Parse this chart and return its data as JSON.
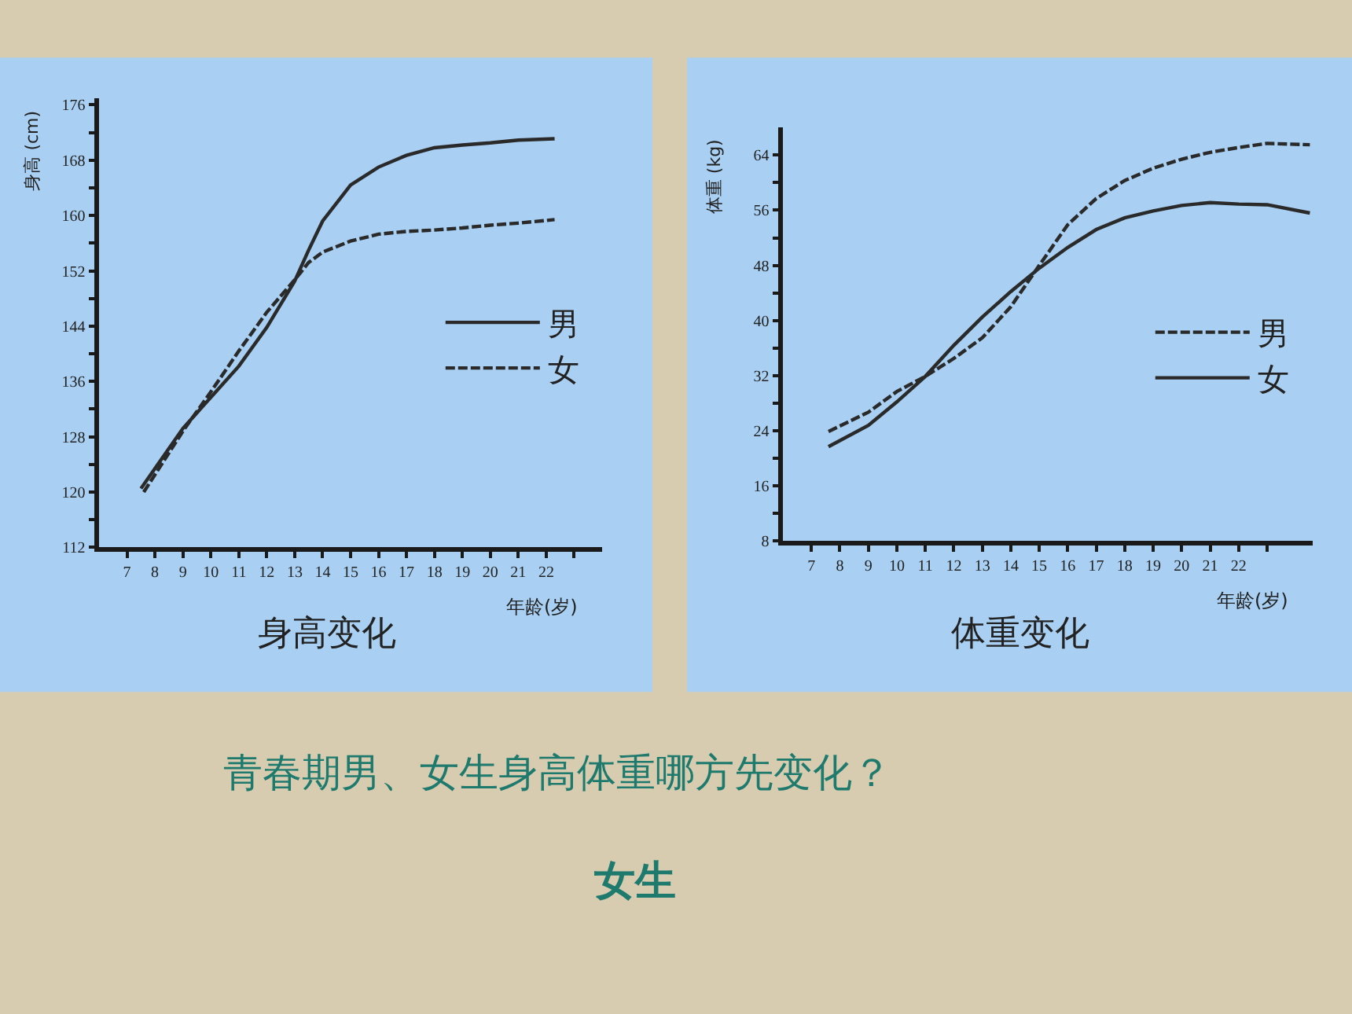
{
  "chart_data": [
    {
      "type": "line",
      "title": "身高变化",
      "xlabel": "年龄(岁)",
      "ylabel": "身高 (cm)",
      "xlim": [
        6,
        24
      ],
      "ylim": [
        112,
        177
      ],
      "xticks": [
        7,
        8,
        9,
        10,
        11,
        12,
        13,
        14,
        15,
        16,
        17,
        18,
        19,
        20,
        21,
        22,
        {
          "value": 23,
          "label": null
        }
      ],
      "yticks": [
        112,
        {
          "value": 116,
          "label": null
        },
        120,
        {
          "value": 124,
          "label": null
        },
        128,
        {
          "value": 132,
          "label": null
        },
        136,
        {
          "value": 140,
          "label": null
        },
        144,
        {
          "value": 148,
          "label": null
        },
        152,
        {
          "value": 156,
          "label": null
        },
        160,
        {
          "value": 164,
          "label": null
        },
        168,
        {
          "value": 172,
          "label": null
        },
        176
      ],
      "grid": false,
      "legend": "right",
      "marker": "none",
      "series": [
        {
          "name": "男",
          "color": "#2a2a2a",
          "line_style": "solid",
          "x": [
            7.5,
            9,
            10,
            11,
            12,
            13,
            13.5,
            14,
            15,
            16,
            17,
            18,
            19,
            20,
            21,
            22.3
          ],
          "values": [
            120.5,
            129.2,
            133.7,
            138.2,
            143.8,
            150.5,
            155,
            159.2,
            164.4,
            167,
            168.7,
            169.8,
            170.2,
            170.5,
            170.9,
            171.1
          ]
        },
        {
          "name": "女",
          "color": "#2a2a2a",
          "line_style": "dashed",
          "x": [
            7.6,
            9,
            10,
            11,
            12,
            13,
            13.5,
            14,
            15,
            16,
            17,
            18,
            19,
            20,
            21,
            22.3
          ],
          "values": [
            120,
            128.8,
            134.5,
            140.4,
            146,
            150.7,
            153.2,
            154.7,
            156.3,
            157.3,
            157.7,
            157.9,
            158.2,
            158.6,
            158.9,
            159.4
          ]
        }
      ]
    },
    {
      "type": "line",
      "title": "体重变化",
      "xlabel": "年龄(岁)",
      "ylabel": "体重 (kg)",
      "xlim": [
        6,
        24.6
      ],
      "ylim": [
        8,
        68
      ],
      "xticks": [
        7,
        8,
        9,
        10,
        11,
        12,
        13,
        14,
        15,
        16,
        17,
        18,
        19,
        20,
        21,
        22,
        {
          "value": 23,
          "label": null
        }
      ],
      "yticks": [
        8,
        {
          "value": 12,
          "label": null
        },
        16,
        {
          "value": 20,
          "label": null
        },
        24,
        {
          "value": 28,
          "label": null
        },
        32,
        {
          "value": 36,
          "label": null
        },
        40,
        {
          "value": 44,
          "label": null
        },
        48,
        {
          "value": 52,
          "label": null
        },
        56,
        {
          "value": 60,
          "label": null
        },
        64
      ],
      "grid": false,
      "legend": "right",
      "marker": "none",
      "series": [
        {
          "name": "男",
          "color": "#2a2a2a",
          "line_style": "dashed",
          "x": [
            7.6,
            9,
            10,
            11,
            12,
            13,
            14,
            15,
            16,
            17,
            18,
            19,
            20,
            21,
            22,
            23,
            24.5
          ],
          "values": [
            23.9,
            26.7,
            29.7,
            31.9,
            34.5,
            37.5,
            42,
            48,
            53.9,
            57.7,
            60.3,
            62.1,
            63.4,
            64.4,
            65.1,
            65.7,
            65.5
          ]
        },
        {
          "name": "女",
          "color": "#2a2a2a",
          "line_style": "solid",
          "x": [
            7.6,
            9,
            10,
            11,
            12,
            13,
            14,
            15,
            16,
            17,
            18,
            19,
            20,
            21,
            22,
            23,
            24.5
          ],
          "values": [
            21.7,
            24.8,
            28.2,
            31.9,
            36.4,
            40.5,
            44.2,
            47.6,
            50.6,
            53.2,
            54.9,
            55.9,
            56.7,
            57.1,
            56.9,
            56.8,
            55.6
          ]
        }
      ]
    },
    {
      "type": "other",
      "title": "青春期男、女生身高体重哪方先变化？",
      "annotations": [
        "女生"
      ]
    }
  ]
}
